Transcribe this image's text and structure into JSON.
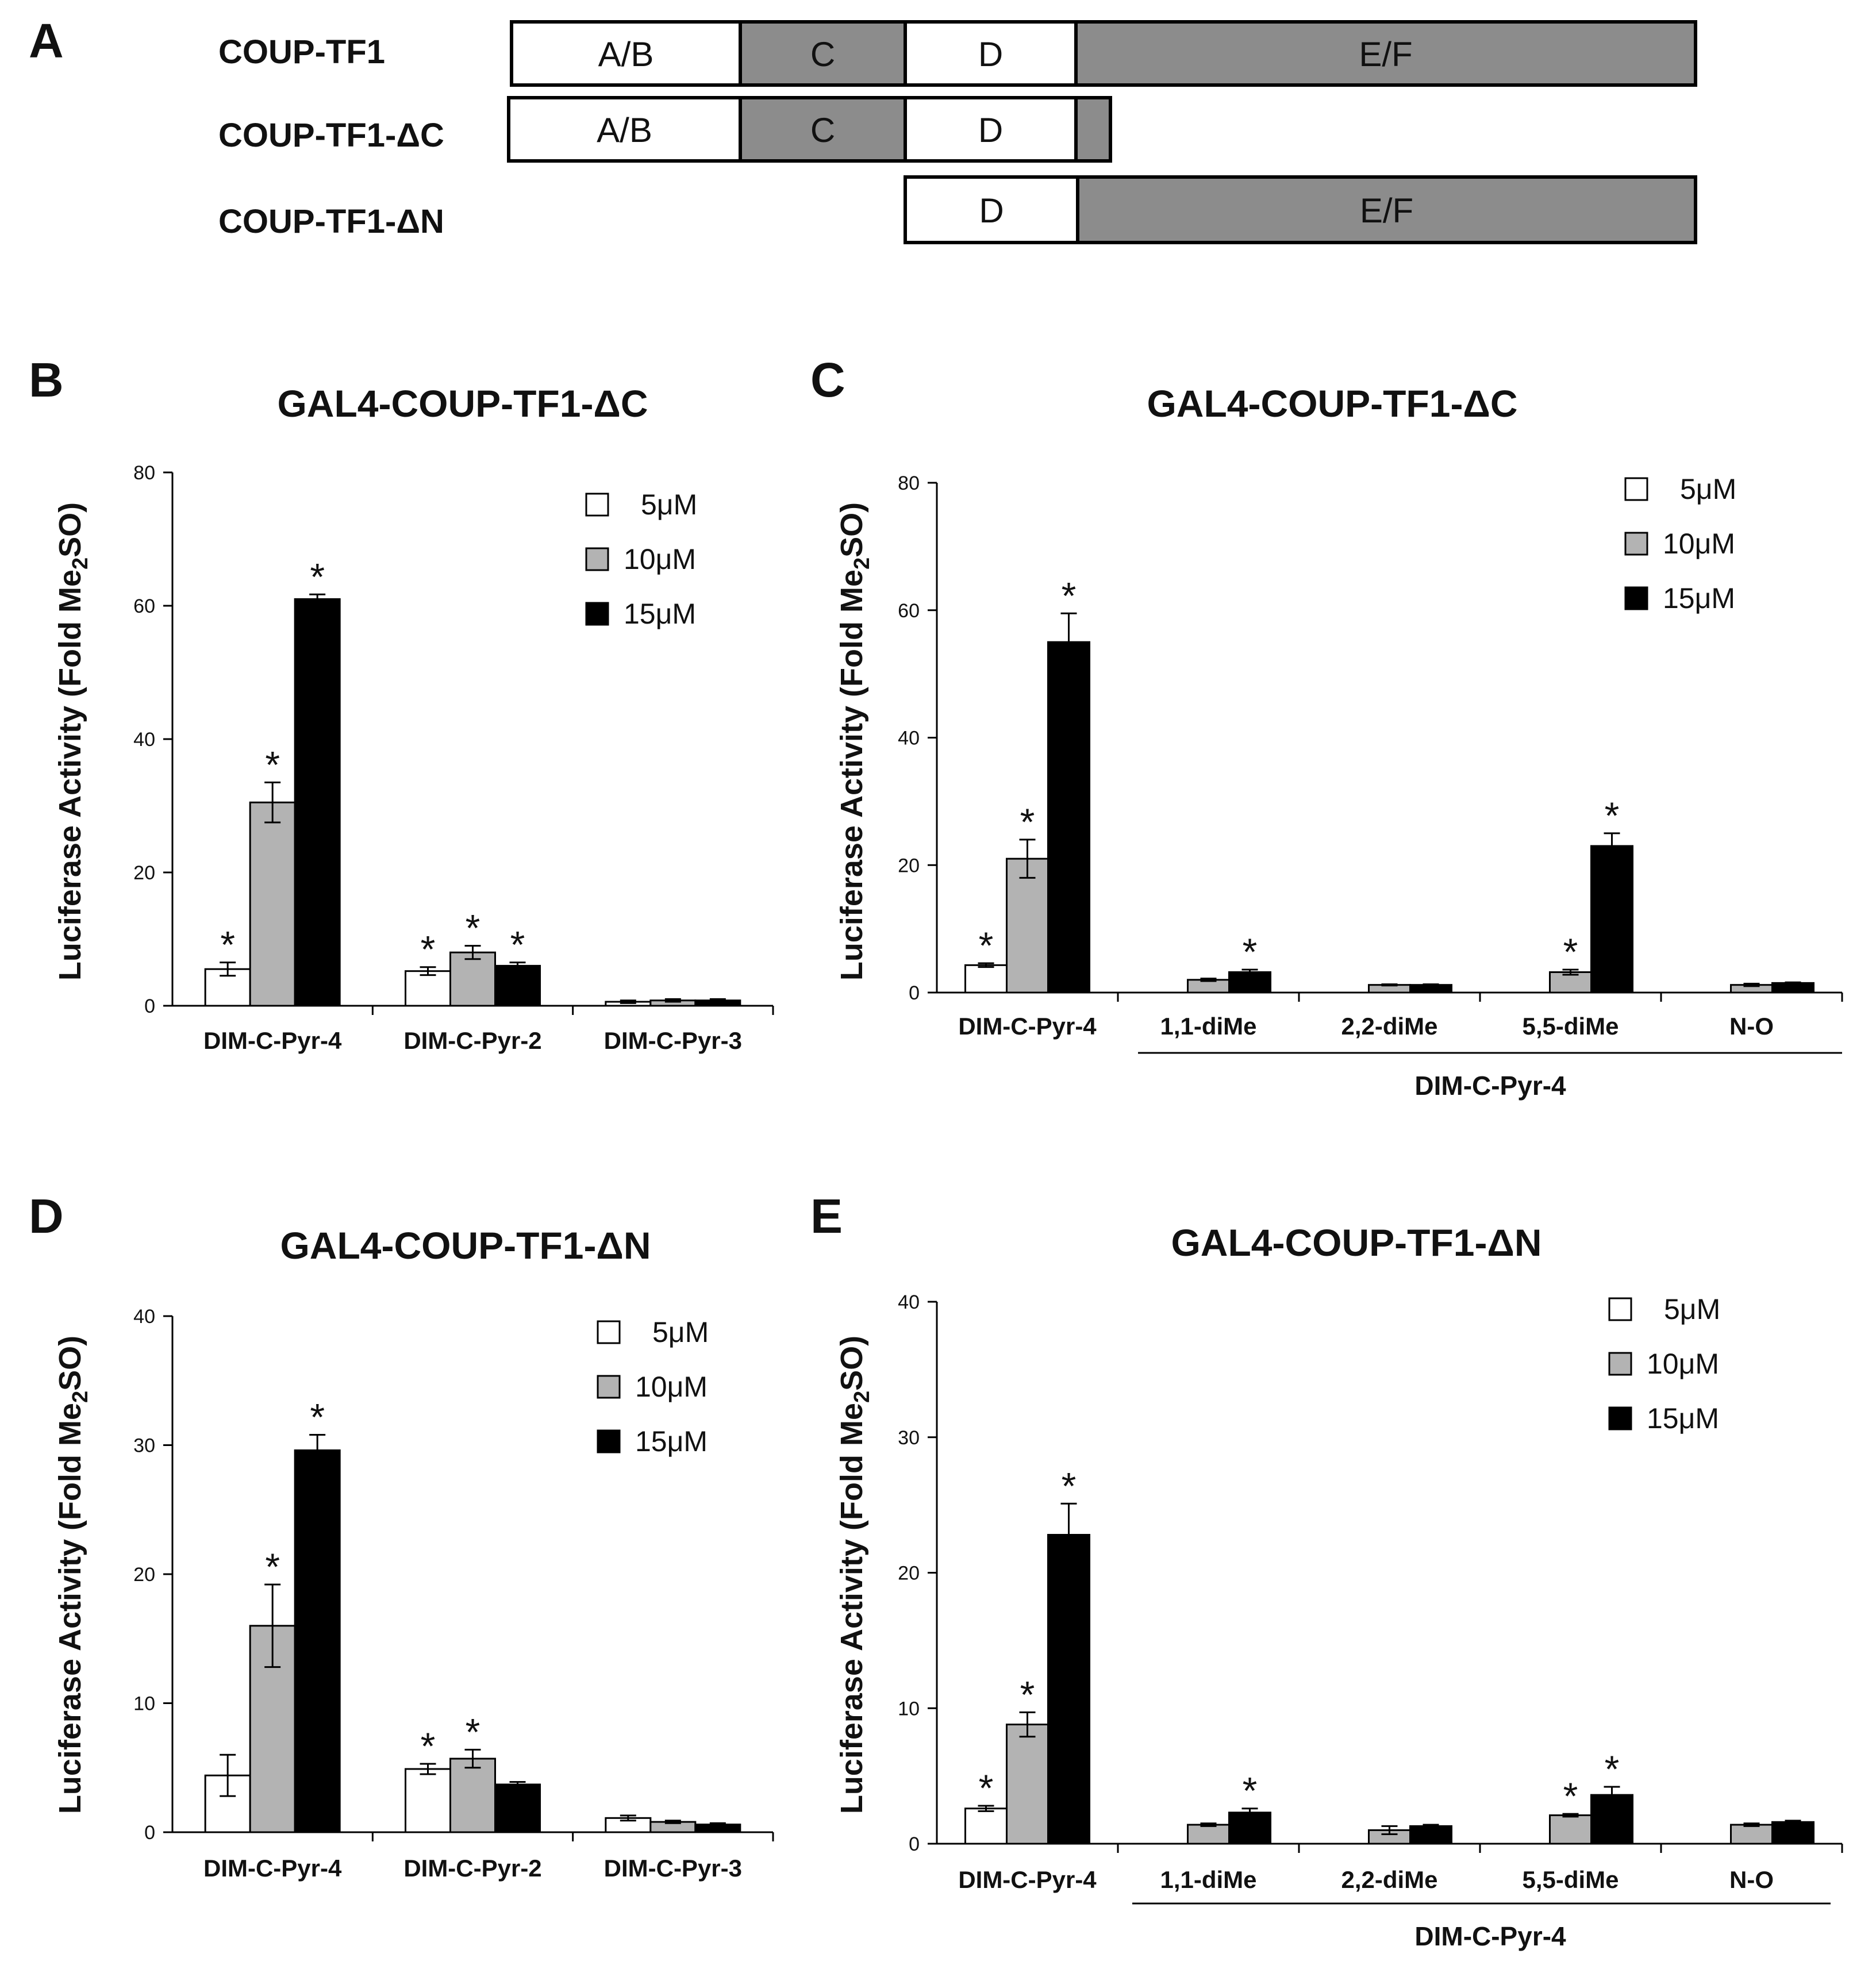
{
  "colors": {
    "white_bar": "#ffffff",
    "gray_bar": "#b3b3b3",
    "black_bar": "#000000",
    "domain_gray": "#8c8c8c",
    "domain_white": "#ffffff",
    "line": "#000000"
  },
  "panel_a": {
    "letter": "A",
    "constructs": [
      {
        "name": "COUP-TF1",
        "domains": [
          {
            "label": "A/B",
            "shade": "white"
          },
          {
            "label": "C",
            "shade": "gray"
          },
          {
            "label": "D",
            "shade": "white"
          },
          {
            "label": "E/F",
            "shade": "gray"
          }
        ]
      },
      {
        "name": "COUP-TF1-ΔC",
        "domains": [
          {
            "label": "A/B",
            "shade": "white"
          },
          {
            "label": "C",
            "shade": "gray"
          },
          {
            "label": "D",
            "shade": "white"
          },
          {
            "label": "",
            "shade": "gray"
          }
        ]
      },
      {
        "name": "COUP-TF1-ΔN",
        "domains": [
          {
            "label": "D",
            "shade": "white"
          },
          {
            "label": "E/F",
            "shade": "gray"
          }
        ]
      }
    ]
  },
  "chart_data": [
    {
      "panel": "B",
      "type": "bar",
      "title": "GAL4-COUP-TF1-ΔC",
      "ylabel": "Luciferase Activity (Fold Me",
      "ylabel_sub": "2",
      "ylabel_tail": "SO)",
      "ylim": [
        0,
        80
      ],
      "yticks": [
        "0",
        "20",
        "40",
        "60",
        "80"
      ],
      "categories": [
        "DIM-C-Pyr-4",
        "DIM-C-Pyr-2",
        "DIM-C-Pyr-3"
      ],
      "legend": [
        "5μM",
        "10μM",
        "15μM"
      ],
      "series": [
        {
          "name": "5μM",
          "values": [
            5.5,
            5.2,
            0.6
          ],
          "errors": [
            1.0,
            0.6,
            0.2
          ],
          "significant": [
            true,
            true,
            false
          ]
        },
        {
          "name": "10μM",
          "values": [
            30.5,
            8.0,
            0.8
          ],
          "errors": [
            3.0,
            1.0,
            0.2
          ],
          "significant": [
            true,
            true,
            false
          ]
        },
        {
          "name": "15μM",
          "values": [
            61.0,
            6.0,
            0.8
          ],
          "errors": [
            0.7,
            0.5,
            0.2
          ],
          "significant": [
            true,
            true,
            false
          ]
        }
      ],
      "star": "*",
      "group_label": ""
    },
    {
      "panel": "C",
      "type": "bar",
      "title": "GAL4-COUP-TF1-ΔC",
      "ylabel": "Luciferase Activity (Fold Me",
      "ylabel_sub": "2",
      "ylabel_tail": "SO)",
      "ylim": [
        0,
        80
      ],
      "yticks": [
        "0",
        "20",
        "40",
        "60",
        "80"
      ],
      "categories": [
        "DIM-C-Pyr-4",
        "1,1-diMe",
        "2,2-diMe",
        "5,5-diMe",
        "N-O"
      ],
      "legend": [
        "5μM",
        "10μM",
        "15μM"
      ],
      "series": [
        {
          "name": "5μM",
          "values": [
            4.3,
            null,
            null,
            null,
            null
          ],
          "errors": [
            0.3,
            null,
            null,
            null,
            null
          ],
          "significant": [
            true,
            false,
            false,
            false,
            false
          ]
        },
        {
          "name": "10μM",
          "values": [
            21.0,
            2.0,
            1.2,
            3.2,
            1.2
          ],
          "errors": [
            3.0,
            0.2,
            0.1,
            0.4,
            0.2
          ],
          "significant": [
            true,
            false,
            false,
            true,
            false
          ]
        },
        {
          "name": "15μM",
          "values": [
            55.0,
            3.2,
            1.2,
            23.0,
            1.5
          ],
          "errors": [
            4.5,
            0.4,
            0.1,
            2.0,
            0.1
          ],
          "significant": [
            true,
            true,
            false,
            true,
            false
          ]
        }
      ],
      "star": "*",
      "group_label": "DIM-C-Pyr-4"
    },
    {
      "panel": "D",
      "type": "bar",
      "title": "GAL4-COUP-TF1-ΔN",
      "ylabel": "Luciferase Activity (Fold Me",
      "ylabel_sub": "2",
      "ylabel_tail": "SO)",
      "ylim": [
        0,
        40
      ],
      "yticks": [
        "0",
        "10",
        "20",
        "30",
        "40"
      ],
      "categories": [
        "DIM-C-Pyr-4",
        "DIM-C-Pyr-2",
        "DIM-C-Pyr-3"
      ],
      "legend": [
        "5μM",
        "10μM",
        "15μM"
      ],
      "series": [
        {
          "name": "5μM",
          "values": [
            4.4,
            4.9,
            1.1
          ],
          "errors": [
            1.6,
            0.4,
            0.2
          ],
          "significant": [
            false,
            true,
            false
          ]
        },
        {
          "name": "10μM",
          "values": [
            16.0,
            5.7,
            0.8
          ],
          "errors": [
            3.2,
            0.7,
            0.1
          ],
          "significant": [
            true,
            true,
            false
          ]
        },
        {
          "name": "15μM",
          "values": [
            29.6,
            3.7,
            0.6
          ],
          "errors": [
            1.2,
            0.2,
            0.1
          ],
          "significant": [
            true,
            false,
            false
          ]
        }
      ],
      "star": "*",
      "group_label": ""
    },
    {
      "panel": "E",
      "type": "bar",
      "title": "GAL4-COUP-TF1-ΔN",
      "ylabel": "Luciferase Activity (Fold Me",
      "ylabel_sub": "2",
      "ylabel_tail": "SO)",
      "ylim": [
        0,
        40
      ],
      "yticks": [
        "0",
        "10",
        "20",
        "30",
        "40"
      ],
      "categories": [
        "DIM-C-Pyr-4",
        "1,1-diMe",
        "2,2-diMe",
        "5,5-diMe",
        "N-O"
      ],
      "legend": [
        "5μM",
        "10μM",
        "15μM"
      ],
      "series": [
        {
          "name": "5μM",
          "values": [
            2.6,
            null,
            null,
            null,
            null
          ],
          "errors": [
            0.2,
            null,
            null,
            null,
            null
          ],
          "significant": [
            true,
            false,
            false,
            false,
            false
          ]
        },
        {
          "name": "10μM",
          "values": [
            8.8,
            1.4,
            1.0,
            2.1,
            1.4
          ],
          "errors": [
            0.9,
            0.1,
            0.3,
            0.1,
            0.1
          ],
          "significant": [
            true,
            false,
            false,
            true,
            false
          ]
        },
        {
          "name": "15μM",
          "values": [
            22.8,
            2.3,
            1.3,
            3.6,
            1.6
          ],
          "errors": [
            2.3,
            0.3,
            0.1,
            0.6,
            0.1
          ],
          "significant": [
            true,
            true,
            false,
            true,
            false
          ]
        }
      ],
      "star": "*",
      "group_label": "DIM-C-Pyr-4"
    }
  ]
}
